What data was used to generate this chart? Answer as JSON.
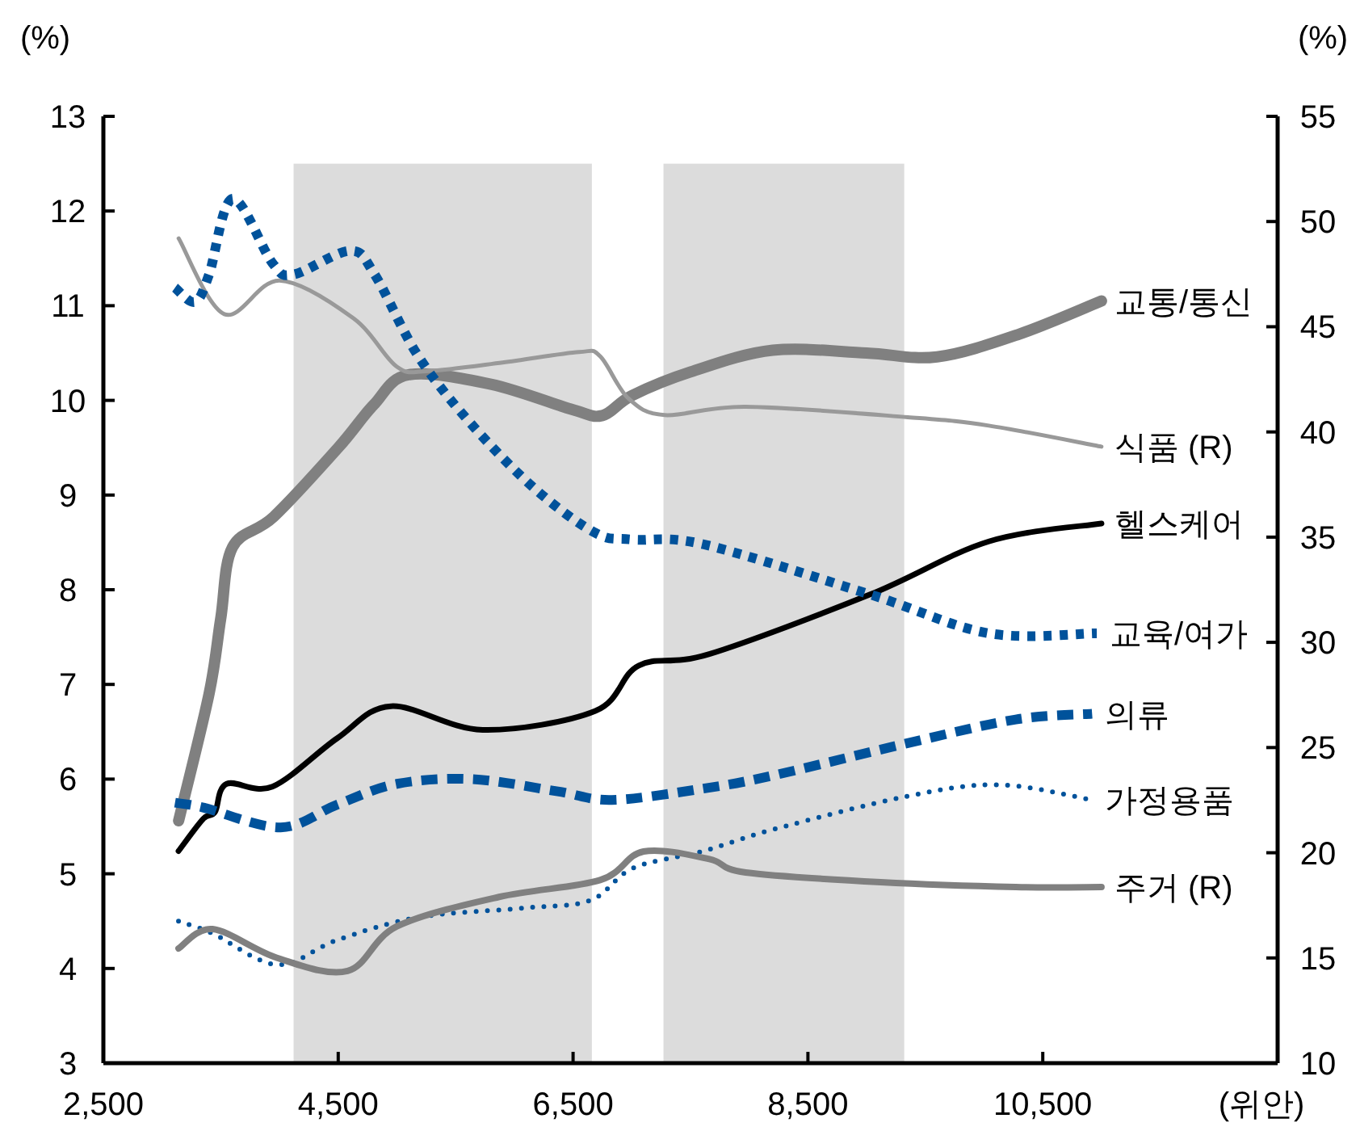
{
  "chart_data": {
    "type": "line",
    "ylabel": "(%)",
    "y2label": "(%)",
    "xlabel": "(위안)",
    "xlim": [
      2500,
      12500
    ],
    "xticks": [
      {
        "value": 2500,
        "label": "2,500"
      },
      {
        "value": 4500,
        "label": "4,500"
      },
      {
        "value": 6500,
        "label": "6,500"
      },
      {
        "value": 8500,
        "label": "8,500"
      },
      {
        "value": 10500,
        "label": "10,500"
      }
    ],
    "ylim": [
      3,
      13
    ],
    "yticks": [
      3,
      4,
      5,
      6,
      7,
      8,
      9,
      10,
      11,
      12,
      13
    ],
    "y2lim": [
      10,
      55
    ],
    "y2ticks": [
      10,
      15,
      20,
      25,
      30,
      35,
      40,
      45,
      50,
      55
    ],
    "bands": [
      {
        "axis": "x",
        "from": 4120,
        "to": 6660,
        "color": "#dcdcdc"
      },
      {
        "axis": "x",
        "from": 7270,
        "to": 9320,
        "color": "#dcdcdc"
      }
    ],
    "series": [
      {
        "name": "교통/통신",
        "color": "#808080",
        "line_style": "solid",
        "x": [
          3141,
          3400,
          3500,
          3600,
          3950,
          4500,
          4800,
          5100,
          5800,
          6500,
          6750,
          7000,
          7500,
          8200,
          9000,
          9600,
          10300,
          11000
        ],
        "values": [
          5.56,
          6.9,
          7.7,
          8.45,
          8.77,
          9.5,
          9.95,
          10.27,
          10.17,
          9.9,
          9.84,
          10.05,
          10.3,
          10.53,
          10.5,
          10.46,
          10.7,
          11.05
        ]
      },
      {
        "name": "식품 (R)",
        "color": "#999999",
        "line_style": "solid",
        "axis": "y2",
        "x": [
          3141,
          3530,
          4000,
          4630,
          5000,
          5270,
          5900,
          6550,
          6730,
          6970,
          7280,
          7970,
          9350,
          10040,
          11000
        ],
        "values": [
          49.2,
          45.6,
          47.2,
          45.4,
          43.1,
          42.9,
          43.3,
          43.8,
          43.6,
          41.6,
          40.8,
          41.2,
          40.7,
          40.3,
          39.3
        ]
      },
      {
        "name": "헬스케어",
        "color": "#000000",
        "line_style": "solid",
        "x": [
          3140,
          3350,
          3450,
          3550,
          3940,
          4490,
          4950,
          5730,
          6690,
          7060,
          7660,
          9030,
          10040,
          11000
        ],
        "values": [
          5.24,
          5.58,
          5.65,
          5.95,
          5.92,
          6.43,
          6.77,
          6.52,
          6.72,
          7.2,
          7.32,
          7.95,
          8.51,
          8.7
        ]
      },
      {
        "name": "교육/여가",
        "color": "#00529b",
        "line_style": "dotted",
        "x": [
          3110,
          3280,
          3400,
          3600,
          3940,
          4120,
          4600,
          4810,
          5180,
          5640,
          6180,
          6690,
          7000,
          7610,
          9030,
          10040,
          10960
        ],
        "values": [
          11.19,
          11.04,
          11.33,
          12.13,
          11.45,
          11.33,
          11.58,
          11.33,
          10.47,
          9.74,
          9.06,
          8.6,
          8.53,
          8.48,
          7.95,
          7.54,
          7.54
        ]
      },
      {
        "name": "의류",
        "color": "#00529b",
        "line_style": "dashed",
        "x": [
          3110,
          3350,
          4010,
          4490,
          5000,
          5640,
          6370,
          6830,
          7610,
          8210,
          9350,
          10270,
          10920
        ],
        "values": [
          5.75,
          5.7,
          5.49,
          5.73,
          5.95,
          6.0,
          5.87,
          5.78,
          5.9,
          6.04,
          6.38,
          6.63,
          6.69
        ]
      },
      {
        "name": "가정용품",
        "color": "#00529b",
        "line_style": "dotted",
        "x": [
          3140,
          3430,
          3980,
          4490,
          5180,
          6100,
          6650,
          7010,
          7610,
          8210,
          9350,
          10130,
          10920
        ],
        "values": [
          4.5,
          4.37,
          4.04,
          4.3,
          4.54,
          4.64,
          4.72,
          5.06,
          5.24,
          5.47,
          5.82,
          5.94,
          5.78
        ]
      },
      {
        "name": "주거 (R)",
        "color": "#808080",
        "line_style": "solid",
        "axis": "y2",
        "x": [
          3140,
          3430,
          3980,
          4580,
          5000,
          5870,
          6730,
          7100,
          7660,
          7970,
          9120,
          10270,
          11000
        ],
        "values": [
          15.45,
          16.37,
          15.0,
          14.38,
          16.5,
          17.9,
          18.7,
          20.06,
          19.7,
          19.06,
          18.6,
          18.37,
          18.37
        ]
      }
    ]
  }
}
